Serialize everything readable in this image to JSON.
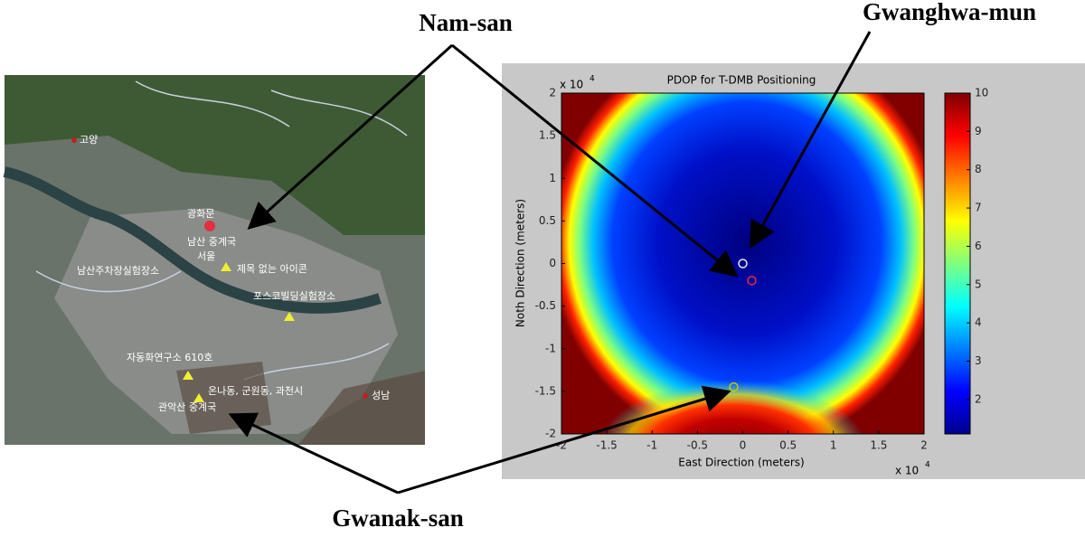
{
  "annotations": {
    "nam_san": "Nam-san",
    "gwanghwa_mun": "Gwanghwa-mun",
    "gwanak_san": "Gwanak-san"
  },
  "map": {
    "labels": [
      "고양",
      "광화문",
      "남산 중계국",
      "서울",
      "제목 없는 아이콘",
      "남산주차장실험장소",
      "포스코빌딩실험장소",
      "자동화연구소 610호",
      "온나동, 군원동, 과천시",
      "관악산 중계국",
      "성남"
    ]
  },
  "chart_data": {
    "type": "heatmap",
    "title": "PDOP for T-DMB Positioning",
    "xlabel": "East Direction (meters)",
    "ylabel": "Noth Direction (meters)",
    "x_multiplier": "x 10",
    "x_multiplier_exp": "4",
    "y_multiplier": "x 10",
    "y_multiplier_exp": "4",
    "xlim": [
      -2,
      2
    ],
    "ylim": [
      -2,
      2
    ],
    "xticks": [
      -2,
      -1.5,
      -1,
      -0.5,
      0,
      0.5,
      1,
      1.5,
      2
    ],
    "yticks": [
      -2,
      -1.5,
      -1,
      -0.5,
      0,
      0.5,
      1,
      1.5,
      2
    ],
    "clim": [
      1.1,
      10
    ],
    "cticks": [
      2,
      3,
      4,
      5,
      6,
      7,
      8,
      9,
      10
    ],
    "points": {
      "x": [
        0,
        0.1,
        -0.1
      ],
      "y": [
        0,
        -0.2,
        -1.45
      ],
      "colors": [
        "#e8e8e8",
        "#e0303c",
        "#c8c800"
      ]
    }
  }
}
